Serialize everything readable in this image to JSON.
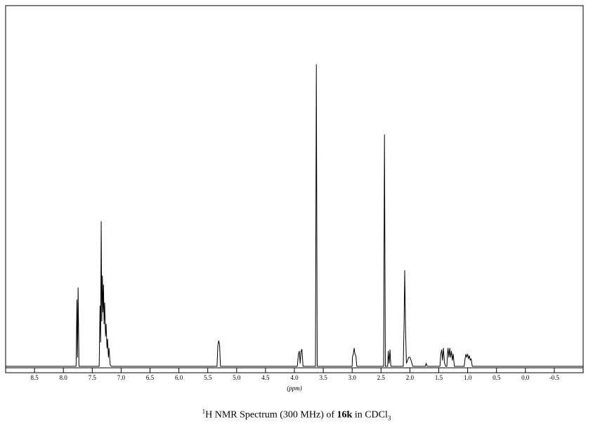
{
  "chart_data": {
    "type": "line",
    "xlabel": "(ppm)",
    "caption": [
      "1",
      "H NMR Spectrum (300 MHz) of ",
      "16k",
      " in CDCl",
      "3"
    ],
    "xlim": [
      9.0,
      -1.0
    ],
    "ylim": [
      -0.5,
      119.5
    ],
    "xticks": [
      8.5,
      {
        "value": 8,
        "label": "8.0"
      },
      7.5,
      {
        "value": 7,
        "label": "7.0"
      },
      6.5,
      {
        "value": 6,
        "label": "6.0"
      },
      5.5,
      {
        "value": 5,
        "label": "5.0"
      },
      4.5,
      {
        "value": 4,
        "label": "4.0"
      },
      3.5,
      {
        "value": 3,
        "label": "3.0"
      },
      2.5,
      {
        "value": 2,
        "label": "2.0"
      },
      1.5,
      {
        "value": 1,
        "label": "1.0"
      },
      0.5,
      {
        "value": 0,
        "label": "0.0"
      },
      -0.5
    ],
    "color": "#000000",
    "x": [
      9.0,
      7.78,
      7.765,
      7.755,
      7.745,
      7.73,
      7.38,
      7.365,
      7.355,
      7.345,
      7.335,
      7.325,
      7.315,
      7.305,
      7.295,
      7.285,
      7.27,
      7.26,
      7.245,
      7.235,
      7.22,
      7.21,
      7.19,
      7.17,
      5.34,
      5.325,
      5.31,
      5.295,
      5.28,
      3.95,
      3.93,
      3.915,
      3.9,
      3.885,
      3.87,
      3.85,
      3.635,
      3.62,
      3.605,
      3.0,
      2.995,
      2.98,
      2.965,
      2.95,
      2.935,
      2.92,
      2.455,
      2.44,
      2.425,
      2.385,
      2.375,
      2.36,
      2.345,
      2.33,
      2.115,
      2.1,
      2.09,
      2.075,
      2.06,
      2.04,
      2.02,
      2.0,
      1.98,
      1.95,
      1.73,
      1.72,
      1.7,
      1.48,
      1.465,
      1.45,
      1.435,
      1.42,
      1.4,
      1.38,
      1.36,
      1.35,
      1.34,
      1.325,
      1.31,
      1.295,
      1.28,
      1.265,
      1.25,
      1.23,
      1.06,
      1.045,
      1.03,
      1.015,
      1.0,
      0.985,
      0.97,
      0.955,
      0.94,
      0.92,
      -1.0
    ],
    "values": [
      0,
      0,
      22,
      3,
      26,
      0,
      0,
      20,
      8,
      48,
      15,
      30,
      18,
      27,
      14,
      21,
      10,
      14,
      6,
      9,
      3,
      6,
      0.5,
      0,
      0,
      7,
      8.5,
      7,
      0,
      0,
      4,
      5,
      1,
      5,
      5.6,
      0,
      0,
      100,
      0,
      0,
      3,
      4,
      6,
      4,
      3.5,
      0,
      0,
      76.7,
      0,
      0,
      5,
      1,
      5.5,
      0,
      0,
      15,
      31.7,
      12,
      1,
      2,
      3,
      3,
      2,
      0,
      0,
      1,
      0,
      0,
      4,
      5.5,
      2,
      6,
      1,
      0,
      0,
      4,
      6,
      3,
      6,
      3,
      5,
      2,
      4,
      0,
      0,
      2.5,
      4,
      3,
      4,
      2.5,
      3.5,
      2,
      2.5,
      0,
      0
    ]
  }
}
